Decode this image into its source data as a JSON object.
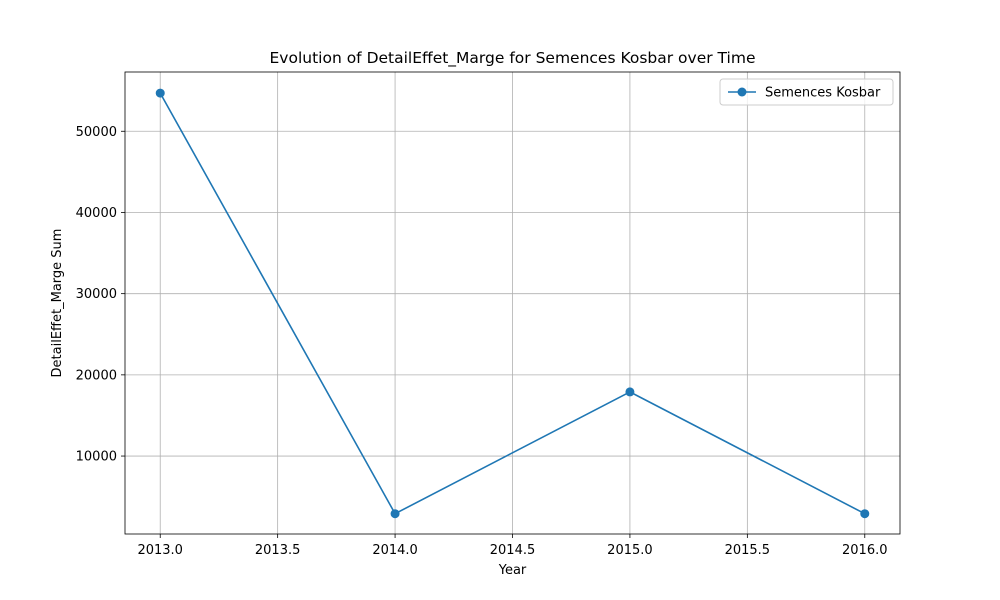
{
  "chart_data": {
    "type": "line",
    "title": "Evolution of DetailEffet_Marge for Semences Kosbar over Time",
    "xlabel": "Year",
    "ylabel": "DetailEffet_Marge Sum",
    "xlim": [
      2012.85,
      2016.15
    ],
    "ylim": [
      400,
      57300
    ],
    "x_ticks": [
      2013.0,
      2013.5,
      2014.0,
      2014.5,
      2015.0,
      2015.5,
      2016.0
    ],
    "x_tick_labels": [
      "2013.0",
      "2013.5",
      "2014.0",
      "2014.5",
      "2015.0",
      "2015.5",
      "2016.0"
    ],
    "y_ticks": [
      10000,
      20000,
      30000,
      40000,
      50000
    ],
    "y_tick_labels": [
      "10000",
      "20000",
      "30000",
      "40000",
      "50000"
    ],
    "grid": true,
    "legend_position": "top-right",
    "series": [
      {
        "name": "Semences Kosbar",
        "color": "#1f77b4",
        "marker": "circle",
        "x": [
          2013,
          2014,
          2015,
          2016
        ],
        "y": [
          54700,
          2900,
          17900,
          2900
        ]
      }
    ]
  }
}
